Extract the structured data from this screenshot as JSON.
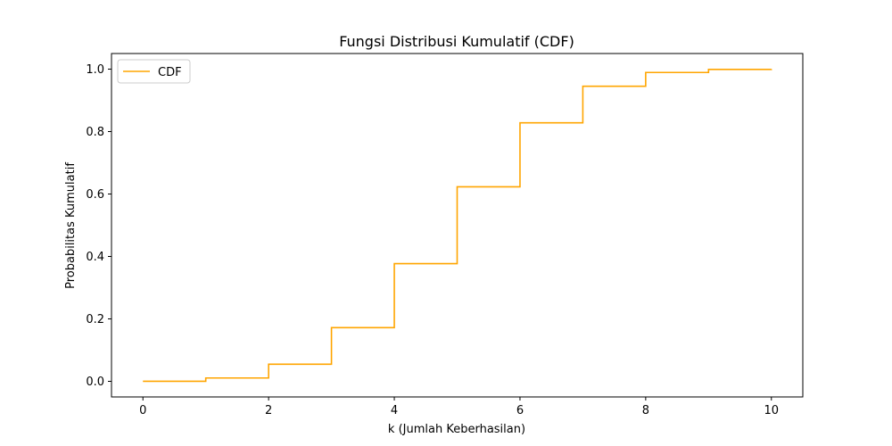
{
  "chart_data": {
    "type": "line",
    "step": "post",
    "title": "Fungsi Distribusi Kumulatif (CDF)",
    "xlabel": "k (Jumlah Keberhasilan)",
    "ylabel": "Probabilitas Kumulatif",
    "xlim": [
      -0.5,
      10.5
    ],
    "ylim": [
      -0.05,
      1.05
    ],
    "xticks": [
      0,
      2,
      4,
      6,
      8,
      10
    ],
    "xtick_labels": [
      "0",
      "2",
      "4",
      "6",
      "8",
      "10"
    ],
    "yticks": [
      0.0,
      0.2,
      0.4,
      0.6,
      0.8,
      1.0
    ],
    "ytick_labels": [
      "0.0",
      "0.2",
      "0.4",
      "0.6",
      "0.8",
      "1.0"
    ],
    "grid": false,
    "legend_position": "top-left",
    "series": [
      {
        "name": "CDF",
        "color": "#ffa500",
        "x": [
          0,
          1,
          2,
          3,
          4,
          5,
          6,
          7,
          8,
          9,
          10
        ],
        "y": [
          0.0001,
          0.0107,
          0.0547,
          0.1719,
          0.377,
          0.623,
          0.8281,
          0.9453,
          0.9893,
          0.999,
          1.0
        ]
      }
    ]
  }
}
